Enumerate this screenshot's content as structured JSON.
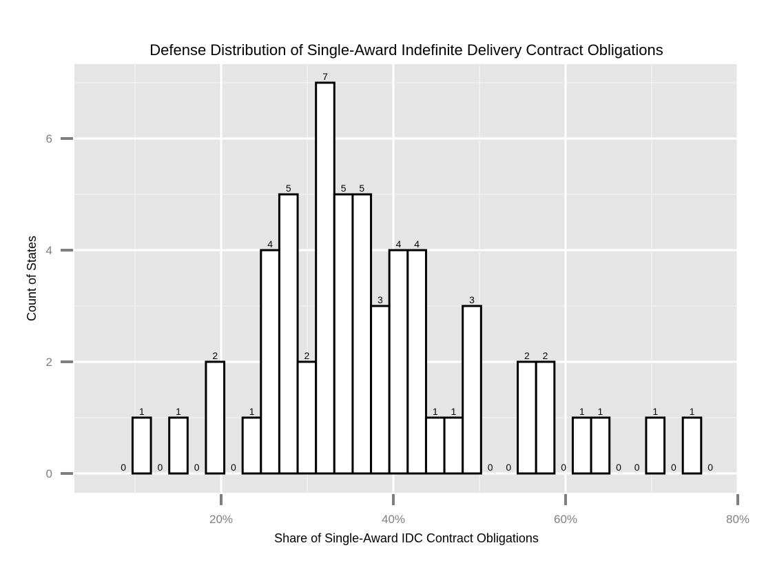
{
  "chart_data": {
    "type": "bar",
    "title": "Defense Distribution of Single-Award Indefinite Delivery Contract Obligations",
    "xlabel": "Share of Single-Award IDC Contract Obligations",
    "ylabel": "Count of States",
    "x_ticks": [
      "20%",
      "40%",
      "60%",
      "80%"
    ],
    "y_ticks": [
      "0",
      "2",
      "4",
      "6"
    ],
    "xlim": [
      0.05,
      0.77
    ],
    "ylim": [
      -0.35,
      7.35
    ],
    "bin_width": 0.0213,
    "bin_centers": [
      0.0865,
      0.1078,
      0.1291,
      0.1504,
      0.1717,
      0.193,
      0.2143,
      0.2356,
      0.2569,
      0.2782,
      0.2995,
      0.3208,
      0.3421,
      0.3634,
      0.3847,
      0.406,
      0.4273,
      0.4486,
      0.4699,
      0.4912,
      0.5125,
      0.5338,
      0.5551,
      0.5764,
      0.5977,
      0.619,
      0.6403,
      0.6616,
      0.6829,
      0.7042,
      0.7255,
      0.7468,
      0.7681
    ],
    "values": [
      0,
      1,
      0,
      1,
      0,
      2,
      0,
      1,
      4,
      5,
      2,
      7,
      5,
      5,
      3,
      4,
      4,
      1,
      1,
      3,
      0,
      0,
      2,
      2,
      0,
      1,
      1,
      0,
      0,
      1,
      0,
      1,
      0
    ],
    "bar_fill": "#ffffff",
    "bar_stroke": "#000000",
    "panel_background": "#e5e5e5",
    "grid": true
  }
}
